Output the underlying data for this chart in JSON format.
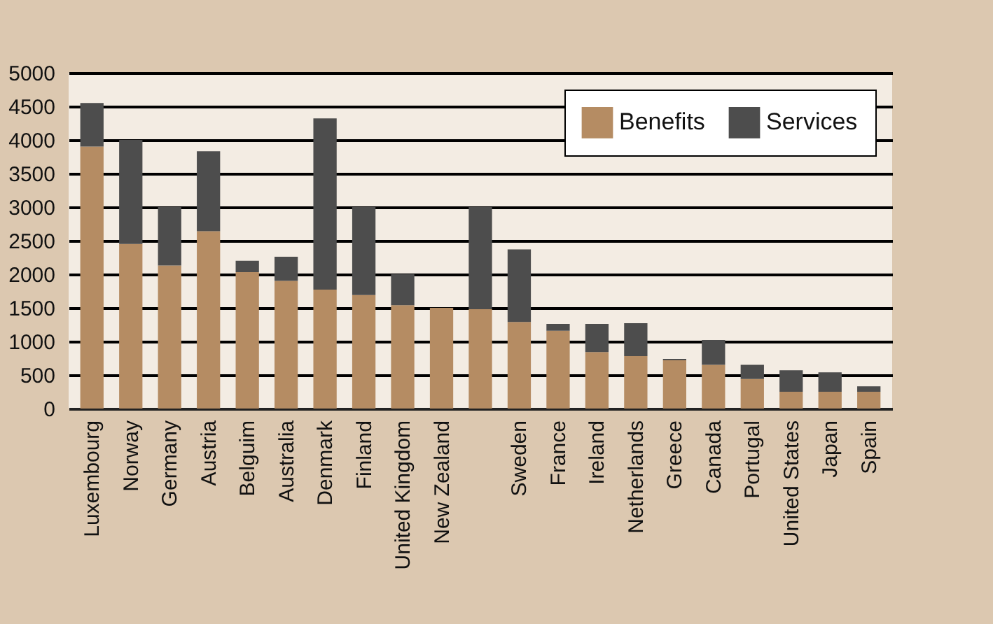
{
  "chart_data": {
    "type": "bar",
    "stacked": true,
    "categories": [
      "Luxembourg",
      "Norway",
      "Germany",
      "Austria",
      "Belguim",
      "Australia",
      "Denmark",
      "Finland",
      "United Kingdom",
      "New Zealand",
      null,
      "Sweden",
      "France",
      "Ireland",
      "Netherlands",
      "Greece",
      "Canada",
      "Portugal",
      "United States",
      "Japan",
      "Spain"
    ],
    "series": [
      {
        "name": "Benefits",
        "color": "#b58c63",
        "values": [
          3900,
          2450,
          2130,
          2640,
          2030,
          1900,
          1770,
          1690,
          1540,
          1500,
          1480,
          1290,
          1160,
          840,
          780,
          720,
          650,
          440,
          250,
          250,
          250
        ]
      },
      {
        "name": "Services",
        "color": "#4d4d4d",
        "values": [
          650,
          1550,
          870,
          1190,
          170,
          360,
          2550,
          1310,
          460,
          0,
          1520,
          1080,
          100,
          420,
          490,
          20,
          370,
          210,
          320,
          290,
          80
        ]
      }
    ],
    "ylim": [
      0,
      5000
    ],
    "yticks": [
      0,
      500,
      1000,
      1500,
      2000,
      2500,
      3000,
      3500,
      4000,
      4500,
      5000
    ],
    "grid": "y",
    "legend": "top right"
  }
}
